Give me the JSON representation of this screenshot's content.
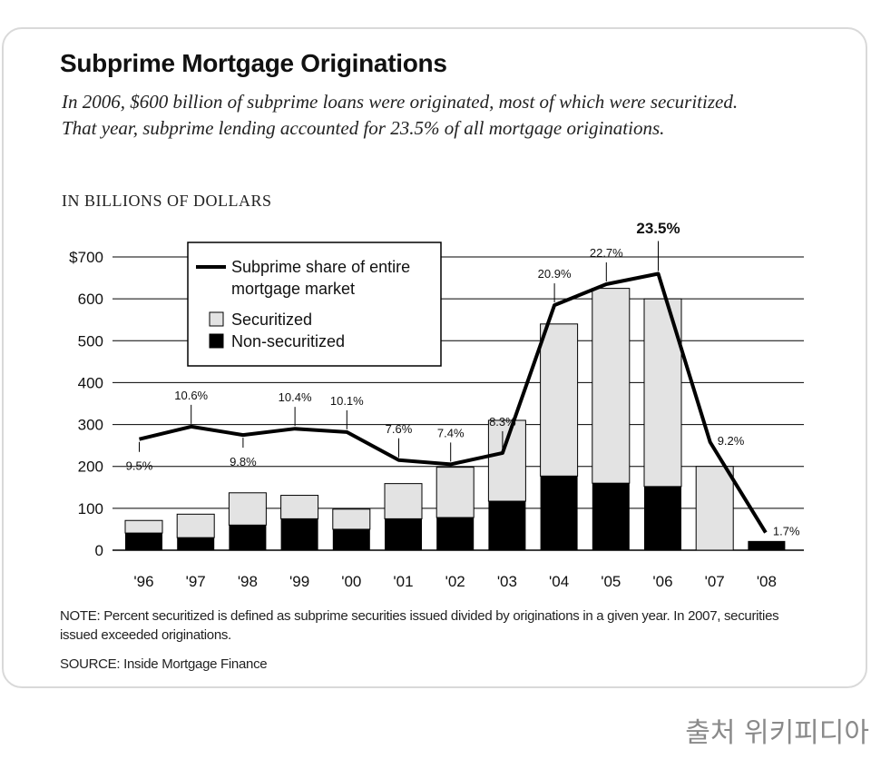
{
  "title": "Subprime Mortgage Originations",
  "subtitle": "In 2006, $600 billion of subprime loans were originated, most of which were securitized. That year, subprime lending accounted for 23.5% of all mortgage originations.",
  "units_label": "IN BILLIONS OF DOLLARS",
  "note": "NOTE: Percent securitized is defined as subprime securities issued divided by originations in a given year. In 2007, securities issued exceeded originations.",
  "source": "SOURCE: Inside Mortgage Finance",
  "credit": "출처 위키피디아",
  "colors": {
    "securitized": "#e3e3e3",
    "non_securitized": "#000000",
    "line": "#000000"
  },
  "chart_data": {
    "type": "bar",
    "stacked": true,
    "categories": [
      "'96",
      "'97",
      "'98",
      "'99",
      "'00",
      "'01",
      "'02",
      "'03",
      "'04",
      "'05",
      "'06",
      "'07",
      "'08"
    ],
    "ylim": [
      0,
      700
    ],
    "yticks": [
      0,
      100,
      200,
      300,
      400,
      500,
      600,
      700
    ],
    "ytick_labels": [
      "0",
      "100",
      "200",
      "300",
      "400",
      "500",
      "600",
      "$700"
    ],
    "grid": true,
    "legend_position": "top-left",
    "series": [
      {
        "name": "Non-securitized",
        "values": [
          41,
          30,
          60,
          75,
          50,
          75,
          78,
          117,
          177,
          160,
          152,
          0,
          22
        ]
      },
      {
        "name": "Securitized",
        "values": [
          30,
          56,
          77,
          56,
          48,
          84,
          120,
          193,
          363,
          465,
          448,
          200,
          0
        ]
      }
    ],
    "line_series": {
      "name": "Subprime share of entire mortgage market",
      "values": [
        265,
        295,
        275,
        290,
        282,
        215,
        205,
        232,
        585,
        635,
        660,
        258,
        42
      ],
      "labels": [
        "9.5%",
        "10.6%",
        "9.8%",
        "10.4%",
        "10.1%",
        "7.6%",
        "7.4%",
        "8.3%",
        "20.9%",
        "22.7%",
        "23.5%",
        "9.2%",
        "1.7%"
      ],
      "label_position": [
        "below",
        "above",
        "below",
        "above",
        "above",
        "above",
        "above",
        "above",
        "above",
        "above",
        "above",
        "right",
        "right"
      ]
    }
  }
}
